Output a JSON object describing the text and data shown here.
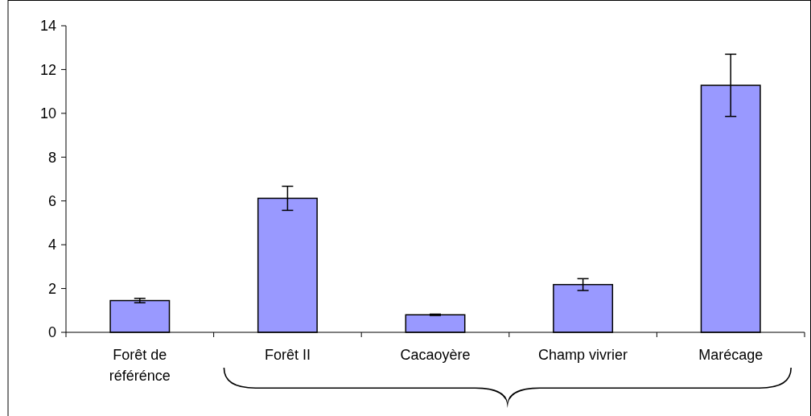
{
  "chart_data": {
    "type": "bar",
    "categories": [
      "Forêt de référénce",
      "Forêt II",
      "Cacaoyère",
      "Champ vivrier",
      "Marécage"
    ],
    "values": [
      1.45,
      6.12,
      0.8,
      2.18,
      11.28
    ],
    "errors": [
      0.1,
      0.55,
      0.03,
      0.27,
      1.42
    ],
    "color": "#9999ff",
    "ylim": [
      0,
      14
    ],
    "yticks": [
      0,
      2,
      4,
      6,
      8,
      10,
      12,
      14
    ]
  }
}
